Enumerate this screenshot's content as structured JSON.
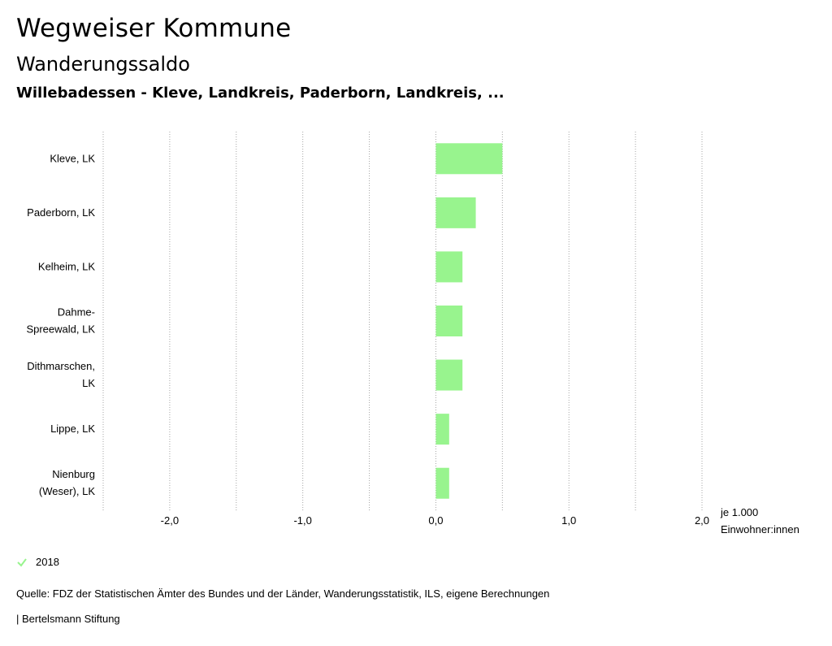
{
  "header": {
    "title": "Wegweiser Kommune",
    "subtitle": "Wanderungssaldo",
    "region": "Willebadessen - Kleve, Landkreis, Paderborn, Landkreis, ..."
  },
  "chart_data": {
    "type": "bar",
    "orientation": "horizontal",
    "categories": [
      [
        "Kleve, LK"
      ],
      [
        "Paderborn, LK"
      ],
      [
        "Kelheim, LK"
      ],
      [
        "Dahme-",
        "Spreewald, LK"
      ],
      [
        "Dithmarschen,",
        "LK"
      ],
      [
        "Lippe, LK"
      ],
      [
        "Nienburg",
        "(Weser), LK"
      ]
    ],
    "series": [
      {
        "name": "2018",
        "values": [
          0.5,
          0.3,
          0.2,
          0.2,
          0.2,
          0.1,
          0.1
        ]
      }
    ],
    "xlim": [
      -2.5,
      2.0
    ],
    "xticks": [
      -2.0,
      -1.0,
      0.0,
      1.0,
      2.0
    ],
    "xtick_labels": [
      "-2,0",
      "-1,0",
      "0,0",
      "1,0",
      "2,0"
    ],
    "gridlines": [
      -2.5,
      -2.0,
      -1.5,
      -1.0,
      -0.5,
      0.0,
      0.5,
      1.0,
      1.5,
      2.0
    ],
    "unit_label": [
      "je 1.000",
      "Einwohner:innen"
    ],
    "grid": true,
    "legend_position": "bottom-left"
  },
  "colors": {
    "bar": "#98f48e",
    "grid": "#a6a6a6",
    "check": "#98f48e"
  },
  "legend": {
    "icon": "check-icon",
    "label": "2018"
  },
  "footer": {
    "source": "Quelle: FDZ der Statistischen Ämter des Bundes und der Länder, Wanderungsstatistik, ILS, eigene Berechnungen",
    "credit": "| Bertelsmann Stiftung"
  }
}
